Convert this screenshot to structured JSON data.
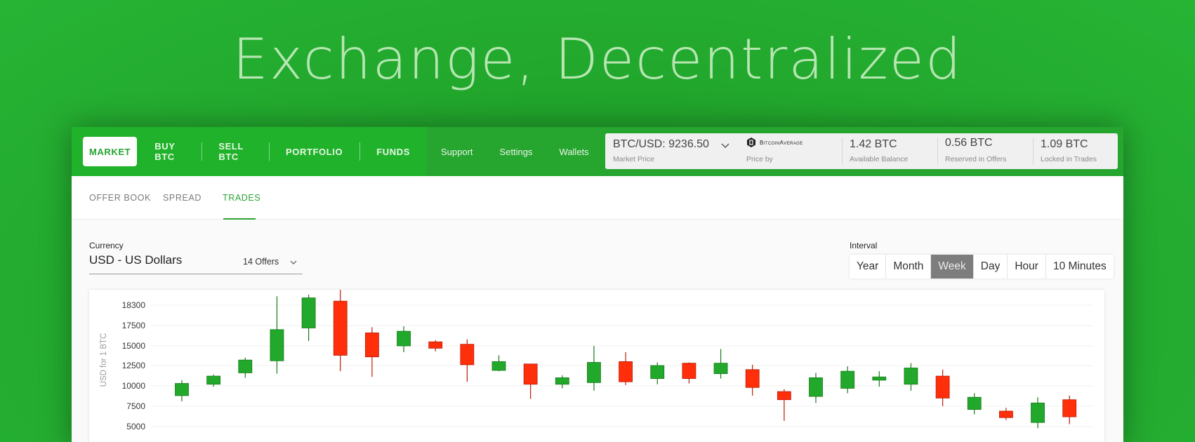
{
  "hero": {
    "title": "Exchange, Decentralized"
  },
  "nav": {
    "main": [
      {
        "label": "MARKET",
        "active": true
      },
      {
        "label": "BUY BTC",
        "active": false
      },
      {
        "label": "SELL BTC",
        "active": false
      },
      {
        "label": "PORTFOLIO",
        "active": false
      },
      {
        "label": "FUNDS",
        "active": false
      }
    ],
    "secondary": [
      "Support",
      "Settings",
      "Wallets"
    ]
  },
  "stats": {
    "market_price": {
      "value": "BTC/USD: 9236.50",
      "label": "Market Price"
    },
    "price_by": {
      "provider": "BitcoinAverage",
      "label": "Price by"
    },
    "available": {
      "value": "1.42 BTC",
      "label": "Available Balance"
    },
    "reserved": {
      "value": "0.56 BTC",
      "label": "Reserved in Offers"
    },
    "locked": {
      "value": "1.09 BTC",
      "label": "Locked in Trades"
    }
  },
  "tabs": [
    {
      "label": "OFFER BOOK",
      "active": false
    },
    {
      "label": "SPREAD",
      "active": false
    },
    {
      "label": "TRADES",
      "active": true
    }
  ],
  "currency": {
    "label": "Currency",
    "value": "USD - US Dollars",
    "offers": "14 Offers"
  },
  "interval": {
    "label": "Interval",
    "options": [
      "Year",
      "Month",
      "Week",
      "Day",
      "Hour",
      "10 Minutes"
    ],
    "selected": "Week"
  },
  "colors": {
    "up": "#22a82a",
    "down": "#ff2e0b",
    "brand": "#21b22c"
  },
  "chart_data": {
    "type": "candlestick",
    "ylabel": "USD for 1 BTC",
    "ylim": [
      5000,
      18300
    ],
    "yticks": [
      18300,
      17500,
      15000,
      12500,
      10000,
      7500,
      5000
    ],
    "candles": [
      {
        "open": 8800,
        "close": 10300,
        "high": 10700,
        "low": 8100
      },
      {
        "open": 10200,
        "close": 11200,
        "high": 11400,
        "low": 9900
      },
      {
        "open": 11600,
        "close": 13200,
        "high": 13500,
        "low": 11000
      },
      {
        "open": 13100,
        "close": 17000,
        "high": 19400,
        "low": 11500
      },
      {
        "open": 17200,
        "close": 19200,
        "high": 19600,
        "low": 15600
      },
      {
        "open": 18800,
        "close": 13800,
        "high": 20500,
        "low": 11800
      },
      {
        "open": 16600,
        "close": 13600,
        "high": 17300,
        "low": 11100
      },
      {
        "open": 15000,
        "close": 16800,
        "high": 17400,
        "low": 14200
      },
      {
        "open": 15500,
        "close": 14700,
        "high": 15700,
        "low": 14300
      },
      {
        "open": 15200,
        "close": 12600,
        "high": 15800,
        "low": 10500
      },
      {
        "open": 11900,
        "close": 13000,
        "high": 13800,
        "low": 11800
      },
      {
        "open": 12700,
        "close": 10200,
        "high": 12700,
        "low": 8400
      },
      {
        "open": 10200,
        "close": 11000,
        "high": 11300,
        "low": 9700
      },
      {
        "open": 10400,
        "close": 12900,
        "high": 15000,
        "low": 9400
      },
      {
        "open": 13000,
        "close": 10500,
        "high": 14200,
        "low": 10100
      },
      {
        "open": 10900,
        "close": 12500,
        "high": 12900,
        "low": 10200
      },
      {
        "open": 12800,
        "close": 10900,
        "high": 12900,
        "low": 10300
      },
      {
        "open": 11500,
        "close": 12800,
        "high": 14600,
        "low": 10900
      },
      {
        "open": 12000,
        "close": 9800,
        "high": 12600,
        "low": 8800
      },
      {
        "open": 9300,
        "close": 8300,
        "high": 9600,
        "low": 5700
      },
      {
        "open": 8700,
        "close": 11000,
        "high": 11600,
        "low": 7900
      },
      {
        "open": 9700,
        "close": 11800,
        "high": 12400,
        "low": 9100
      },
      {
        "open": 10700,
        "close": 11100,
        "high": 11800,
        "low": 9900
      },
      {
        "open": 10200,
        "close": 12200,
        "high": 12800,
        "low": 9400
      },
      {
        "open": 11200,
        "close": 8500,
        "high": 12000,
        "low": 7500
      },
      {
        "open": 7100,
        "close": 8600,
        "high": 9100,
        "low": 6500
      },
      {
        "open": 6900,
        "close": 6100,
        "high": 7300,
        "low": 5800
      },
      {
        "open": 5500,
        "close": 7900,
        "high": 8600,
        "low": 4800
      },
      {
        "open": 8300,
        "close": 6200,
        "high": 8800,
        "low": 5300
      }
    ]
  }
}
